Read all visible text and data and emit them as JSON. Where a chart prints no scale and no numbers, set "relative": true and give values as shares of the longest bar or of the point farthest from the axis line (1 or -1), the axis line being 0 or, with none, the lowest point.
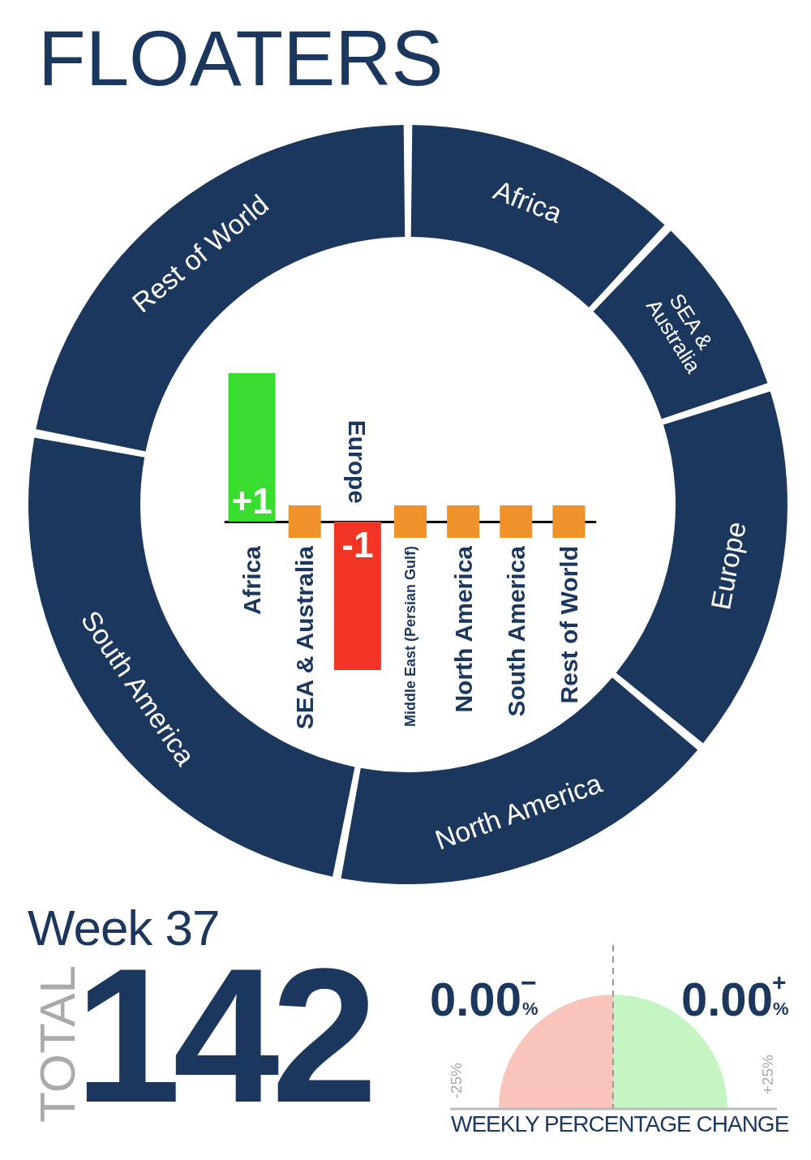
{
  "chart_data": [
    {
      "type": "donut",
      "title": "FLOATERS",
      "categories": [
        "Africa",
        "SEA & Australia",
        "Europe",
        "North America",
        "South America",
        "Rest of World"
      ],
      "values": [
        12,
        8,
        16,
        17,
        25,
        22
      ],
      "colors": [
        "#1c375e",
        "#1c375e",
        "#1c375e",
        "#1c375e",
        "#1c375e",
        "#1c375e"
      ],
      "relative": true
    },
    {
      "type": "bar",
      "categories": [
        "Africa",
        "SEA & Australia",
        "Europe",
        "Middle East (Persian Gulf)",
        "North America",
        "South America",
        "Rest of World"
      ],
      "series": [
        {
          "type": "bar",
          "values": [
            1,
            null,
            -1,
            null,
            null,
            null,
            null
          ],
          "colors": [
            "#38dd30",
            null,
            "#f23424",
            null,
            null,
            null,
            null
          ],
          "value_labels": [
            "+1",
            null,
            "-1",
            null,
            null,
            null,
            null
          ]
        },
        {
          "type": "scatter",
          "marker": "square",
          "color": "#ef9229",
          "x": [
            "SEA & Australia",
            "Middle East (Persian Gulf)",
            "North America",
            "South America",
            "Rest of World"
          ],
          "values": [
            0,
            0,
            0,
            0,
            0
          ]
        }
      ],
      "ylim": [
        -1,
        1
      ],
      "tick_labels": "x"
    },
    {
      "type": "other",
      "title": "Week 37",
      "annotations": [
        "TOTAL",
        "142",
        "0.00",
        "−",
        "%",
        "0.00",
        "+",
        "%",
        "-25%",
        "+25%",
        "WEEKLY PERCENTAGE CHANGE"
      ]
    }
  ]
}
